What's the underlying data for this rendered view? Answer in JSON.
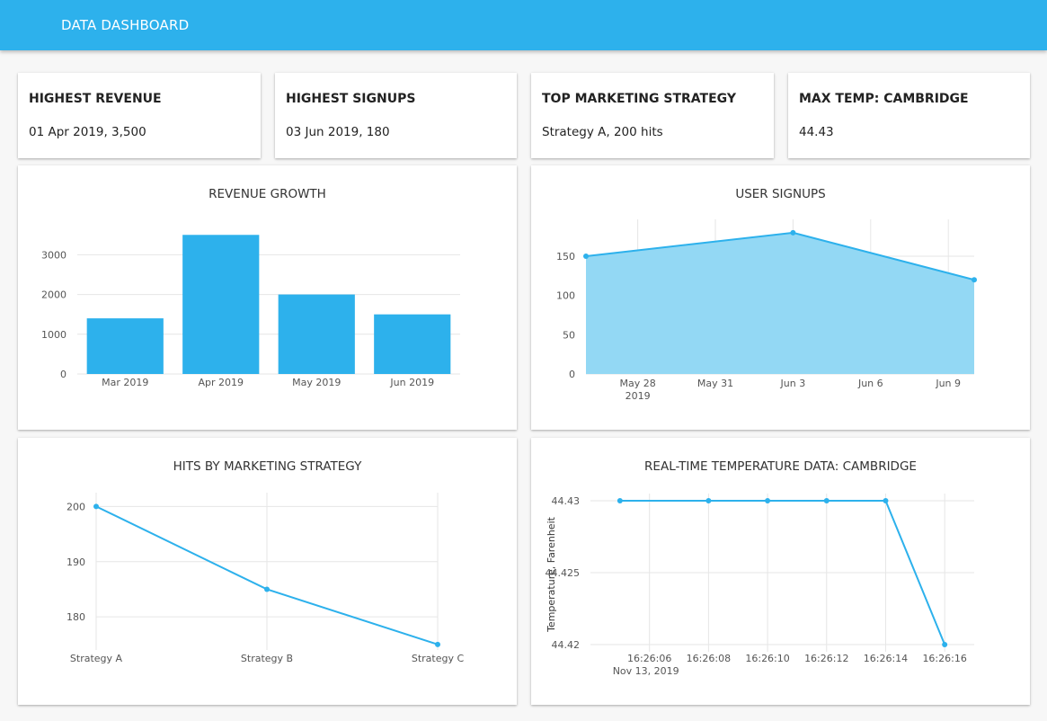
{
  "header": {
    "title": "DATA DASHBOARD"
  },
  "stats": [
    {
      "label": "HIGHEST REVENUE",
      "value": "01 Apr 2019, 3,500"
    },
    {
      "label": "HIGHEST SIGNUPS",
      "value": "03 Jun 2019, 180"
    },
    {
      "label": "TOP MARKETING STRATEGY",
      "value": "Strategy A, 200 hits"
    },
    {
      "label": "MAX TEMP: CAMBRIDGE",
      "value": "44.43"
    }
  ],
  "colors": {
    "accent": "#2db1ec",
    "area_fill": "#93d8f4"
  },
  "chart_data": [
    {
      "type": "bar",
      "title": "REVENUE GROWTH",
      "categories": [
        "Mar 2019",
        "Apr 2019",
        "May 2019",
        "Jun 2019"
      ],
      "values": [
        1400,
        3500,
        2000,
        1500
      ],
      "ylim": [
        0,
        3800
      ],
      "yticks": [
        0,
        1000,
        2000,
        3000
      ],
      "xlabel": "",
      "ylabel": "",
      "grid": true
    },
    {
      "type": "area",
      "title": "USER SIGNUPS",
      "x": [
        "2019-05-26",
        "2019-06-03",
        "2019-06-10"
      ],
      "values": [
        150,
        180,
        120
      ],
      "xlim": [
        "2019-05-26",
        "2019-06-10"
      ],
      "ylim": [
        0,
        197
      ],
      "yticks": [
        0,
        50,
        100,
        150
      ],
      "xticks": [
        {
          "date": "2019-05-28",
          "label": "May 28",
          "sublabel": "2019"
        },
        {
          "date": "2019-05-31",
          "label": "May 31"
        },
        {
          "date": "2019-06-03",
          "label": "Jun 3"
        },
        {
          "date": "2019-06-06",
          "label": "Jun 6"
        },
        {
          "date": "2019-06-09",
          "label": "Jun 9"
        }
      ],
      "xlabel": "",
      "ylabel": "",
      "grid": true
    },
    {
      "type": "line",
      "title": "HITS BY MARKETING STRATEGY",
      "categories": [
        "Strategy A",
        "Strategy B",
        "Strategy C"
      ],
      "values": [
        200,
        185,
        175
      ],
      "ylim": [
        174,
        202.5
      ],
      "yticks": [
        180,
        190,
        200
      ],
      "xlabel": "",
      "ylabel": "",
      "grid": true
    },
    {
      "type": "line",
      "title": "REAL-TIME TEMPERATURE DATA: CAMBRIDGE",
      "x": [
        "16:26:05",
        "16:26:08",
        "16:26:10",
        "16:26:12",
        "16:26:14",
        "16:26:16"
      ],
      "values": [
        44.43,
        44.43,
        44.43,
        44.43,
        44.43,
        44.42
      ],
      "xlim": [
        "16:26:04",
        "16:26:17"
      ],
      "ylim": [
        44.4195,
        44.4305
      ],
      "yticks": [
        44.42,
        44.425,
        44.43
      ],
      "xticks": [
        {
          "time": "16:26:06",
          "label": "16:26:06",
          "sublabel": "Nov 13, 2019"
        },
        {
          "time": "16:26:08",
          "label": "16:26:08"
        },
        {
          "time": "16:26:10",
          "label": "16:26:10"
        },
        {
          "time": "16:26:12",
          "label": "16:26:12"
        },
        {
          "time": "16:26:14",
          "label": "16:26:14"
        },
        {
          "time": "16:26:16",
          "label": "16:26:16"
        }
      ],
      "xlabel": "",
      "ylabel": "Temperature, Farenheit",
      "grid": true
    }
  ]
}
